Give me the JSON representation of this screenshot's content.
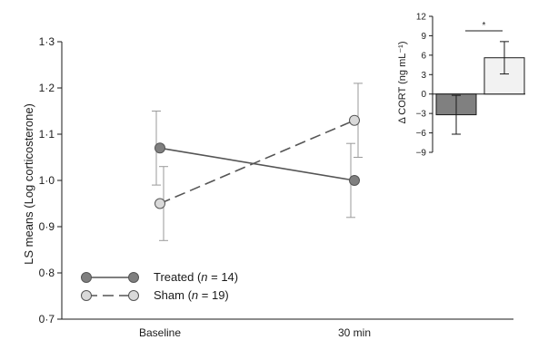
{
  "chart_data": [
    {
      "type": "line",
      "ylabel": "LS means (Log corticosterone)",
      "xlabel": "",
      "categories": [
        "Baseline",
        "30 min"
      ],
      "ylim": [
        0.7,
        1.3
      ],
      "yticks": [
        0.7,
        0.8,
        0.9,
        1.0,
        1.1,
        1.2,
        1.3
      ],
      "ytick_labels": [
        "0·7",
        "0·8",
        "0·9",
        "1·0",
        "1·1",
        "1·2",
        "1·3"
      ],
      "grid": false,
      "legend_position": "bottom-left",
      "series": [
        {
          "name": "Treated",
          "n_label": "(n = 14)",
          "style": "solid",
          "color": "#7f7f7f",
          "values": [
            1.07,
            1.0
          ],
          "error_upper": [
            1.15,
            1.08
          ],
          "error_lower": [
            0.99,
            0.92
          ]
        },
        {
          "name": "Sham",
          "n_label": "(n = 19)",
          "style": "dashed",
          "color": "#d9d9d9",
          "values": [
            0.95,
            1.13
          ],
          "error_upper": [
            1.03,
            1.21
          ],
          "error_lower": [
            0.87,
            1.05
          ]
        }
      ]
    },
    {
      "type": "bar",
      "ylabel": "Δ CORT (ng mL⁻¹)",
      "ylim": [
        -9,
        12
      ],
      "yticks": [
        -9,
        -6,
        -3,
        0,
        3,
        6,
        9,
        12
      ],
      "ytick_labels": [
        "−9",
        "−6",
        "−3",
        "0",
        "3",
        "6",
        "9",
        "12"
      ],
      "categories": [
        "Treated",
        "Sham"
      ],
      "values": [
        -3.2,
        5.6
      ],
      "error": [
        3.0,
        2.5
      ],
      "colors": [
        "#808080",
        "#f2f2f2"
      ],
      "annotation": "*"
    }
  ]
}
